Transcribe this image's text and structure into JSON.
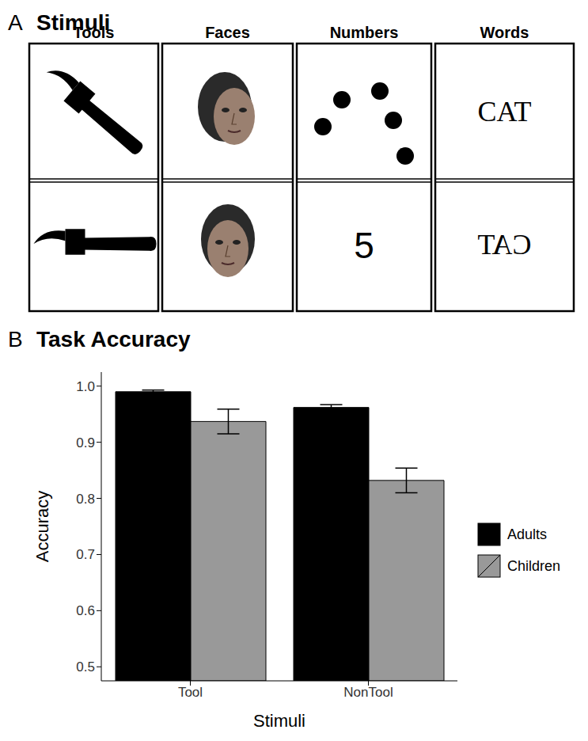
{
  "stimuli_panel": {
    "label": "A",
    "title": "Stimuli",
    "columns": [
      "Tools",
      "Faces",
      "Numbers",
      "Words"
    ],
    "number": "5",
    "words": [
      {
        "text": "CAT",
        "mirrored": false
      },
      {
        "text": "CAT",
        "mirrored": true
      }
    ]
  },
  "chart_panel_label": "B",
  "chart_data": {
    "type": "bar",
    "title": "Task Accuracy",
    "x_label": "Stimuli",
    "y_label": "Accuracy",
    "categories": [
      "Tool",
      "NonTool"
    ],
    "series": [
      {
        "name": "Adults",
        "color": "#000000",
        "values": [
          0.99,
          0.962
        ],
        "errors": [
          0.003,
          0.005
        ]
      },
      {
        "name": "Children",
        "color": "#999999",
        "values": [
          0.937,
          0.832
        ],
        "errors": [
          0.022,
          0.022
        ]
      }
    ],
    "ylim": [
      0.475,
      1.025
    ],
    "yticks": [
      0.5,
      0.6,
      0.7,
      0.8,
      0.9,
      {
        "value": 1,
        "label": "1.0"
      }
    ],
    "grid": false,
    "legend": "right"
  }
}
